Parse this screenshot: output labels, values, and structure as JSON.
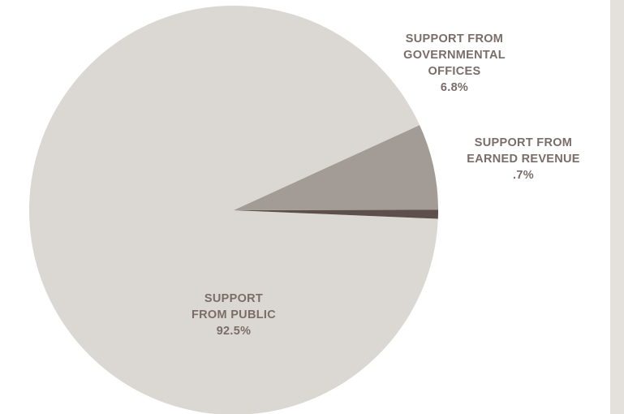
{
  "chart_data": {
    "type": "pie",
    "slices": [
      {
        "label_lines": [
          "SUPPORT",
          "FROM PUBLIC"
        ],
        "value": 92.5,
        "value_label": "92.5%",
        "color": "#dbd8d3"
      },
      {
        "label_lines": [
          "SUPPORT FROM",
          "GOVERNMENTAL",
          "OFFICES"
        ],
        "value": 6.8,
        "value_label": "6.8%",
        "color": "#a39c96"
      },
      {
        "label_lines": [
          "SUPPORT FROM",
          "EARNED REVENUE"
        ],
        "value": 0.7,
        "value_label": ".7%",
        "color": "#5c4f4c"
      }
    ],
    "label_color": "#7a6d69",
    "legend": "none"
  },
  "colors": {
    "side_bar": "#e4e1dc"
  }
}
